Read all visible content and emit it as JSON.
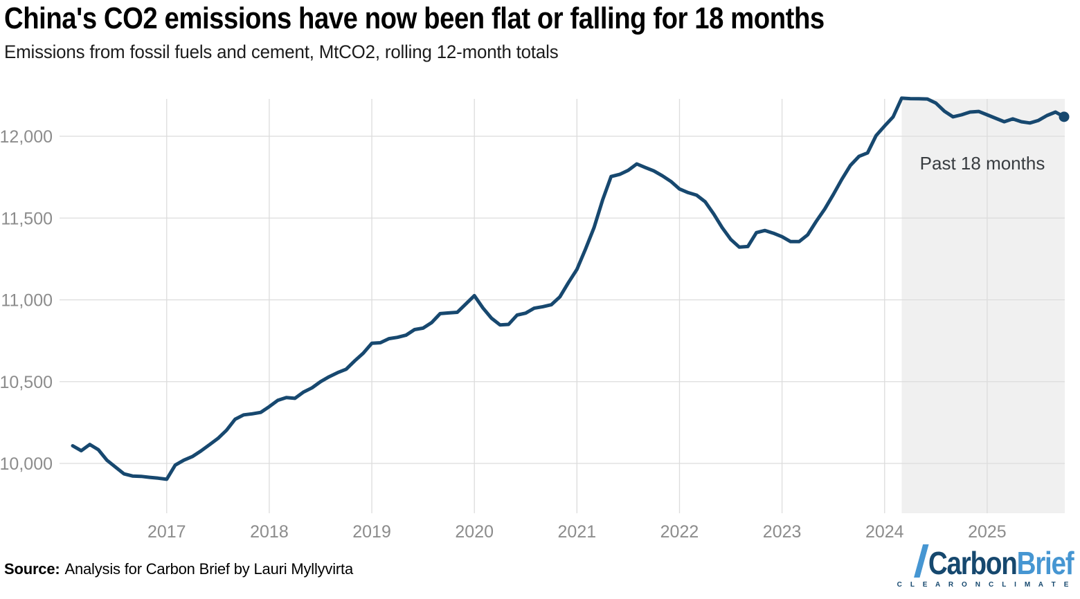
{
  "header": {
    "title": "China's CO2 emissions have now been flat or falling for 18 months",
    "subtitle": "Emissions from fossil fuels and cement, MtCO2, rolling 12-month totals"
  },
  "chart_data": {
    "type": "line",
    "title": "China's CO2 emissions have now been flat or falling for 18 months",
    "unit": "MtCO2",
    "x_start": "2016-02",
    "x_end": "2025-10",
    "x_frequency": "monthly",
    "ylim": [
      9700,
      12300
    ],
    "grid": "on",
    "series": [
      {
        "name": "Emissions from fossil fuels and cement, rolling 12-month totals (MtCO2)",
        "values": [
          10108,
          10078,
          10116,
          10084,
          10020,
          9978,
          9936,
          9923,
          9921,
          9915,
          9910,
          9903,
          9990,
          10020,
          10042,
          10076,
          10114,
          10153,
          10203,
          10270,
          10297,
          10303,
          10312,
          10347,
          10386,
          10403,
          10398,
          10436,
          10462,
          10500,
          10530,
          10555,
          10576,
          10627,
          10674,
          10735,
          10738,
          10763,
          10771,
          10784,
          10818,
          10827,
          10861,
          10916,
          10920,
          10924,
          10975,
          11026,
          10950,
          10888,
          10847,
          10850,
          10907,
          10919,
          10949,
          10958,
          10970,
          11018,
          11105,
          11186,
          11310,
          11441,
          11610,
          11754,
          11767,
          11792,
          11831,
          11809,
          11788,
          11758,
          11724,
          11678,
          11656,
          11640,
          11600,
          11525,
          11441,
          11369,
          11322,
          11326,
          11411,
          11424,
          11407,
          11386,
          11356,
          11356,
          11398,
          11480,
          11555,
          11644,
          11737,
          11822,
          11877,
          11898,
          12004,
          12063,
          12119,
          12233,
          12230,
          12229,
          12228,
          12203,
          12153,
          12119,
          12131,
          12148,
          12152,
          12131,
          12110,
          12089,
          12106,
          12089,
          12081,
          12097,
          12127,
          12148,
          12119
        ]
      }
    ],
    "y_ticks": [
      {
        "value": 10000,
        "label": "10,000"
      },
      {
        "value": 10500,
        "label": "10,500"
      },
      {
        "value": 11000,
        "label": "11,000"
      },
      {
        "value": 11500,
        "label": "11,500"
      },
      {
        "value": 12000,
        "label": "12,000"
      }
    ],
    "x_ticks": [
      {
        "year": 2017,
        "label": "2017"
      },
      {
        "year": 2018,
        "label": "2018"
      },
      {
        "year": 2019,
        "label": "2019"
      },
      {
        "year": 2020,
        "label": "2020"
      },
      {
        "year": 2021,
        "label": "2021"
      },
      {
        "year": 2022,
        "label": "2022"
      },
      {
        "year": 2023,
        "label": "2023"
      },
      {
        "year": 2024,
        "label": "2024"
      },
      {
        "year": 2025,
        "label": "2025"
      }
    ],
    "annotation": {
      "label": "Past 18 months",
      "band_start": "2024-03",
      "band_end": "2025-10"
    },
    "end_dot": true,
    "colors": {
      "line": "#17486f",
      "band": "#f0f0f0",
      "gridline": "#dcdcdc",
      "tick_label": "#8c8c8c",
      "annotation_text": "#383c40"
    }
  },
  "footer": {
    "source_label": "Source:",
    "source_text": "Analysis for Carbon Brief by Lauri Myllyvirta",
    "logo": {
      "part1": "Carbon",
      "part2": "Brief",
      "tagline": "C L E A R   O N   C L I M A T E",
      "color_dark": "#16486e",
      "color_light": "#4696d2"
    }
  }
}
